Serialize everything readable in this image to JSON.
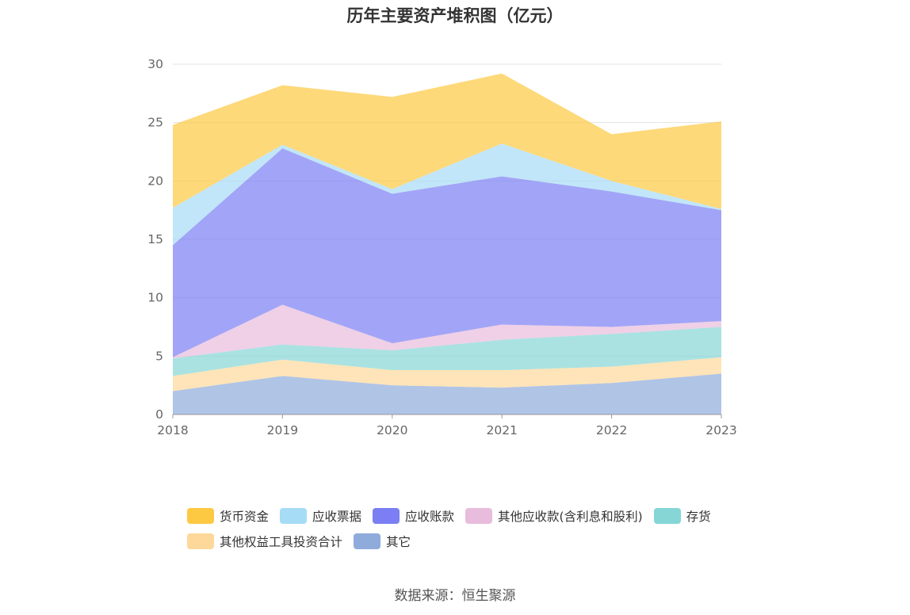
{
  "chart_data": {
    "type": "area",
    "stacked": true,
    "title": "历年主要资产堆积图（亿元）",
    "categories": [
      "2018",
      "2019",
      "2020",
      "2021",
      "2022",
      "2023"
    ],
    "ylim": [
      0,
      30
    ],
    "y_ticks": [
      "0",
      "5",
      "10",
      "15",
      "20",
      "25",
      "30"
    ],
    "grid": true,
    "legend_position": "bottom",
    "series": [
      {
        "name": "其它",
        "color": "#8eabdb",
        "values": [
          2.0,
          3.3,
          2.5,
          2.3,
          2.7,
          3.5
        ]
      },
      {
        "name": "其他权益工具投资合计",
        "color": "#fdd89a",
        "values": [
          1.3,
          1.4,
          1.3,
          1.5,
          1.4,
          1.4
        ]
      },
      {
        "name": "存货",
        "color": "#86d6d6",
        "values": [
          1.5,
          1.3,
          1.7,
          2.6,
          2.8,
          2.6
        ]
      },
      {
        "name": "其他应收款(含利息和股利)",
        "color": "#e8bcdc",
        "values": [
          0.1,
          3.4,
          0.6,
          1.3,
          0.6,
          0.5
        ]
      },
      {
        "name": "应收账款",
        "color": "#7b7ff3",
        "values": [
          9.6,
          13.4,
          12.8,
          12.7,
          11.6,
          9.5
        ]
      },
      {
        "name": "应收票据",
        "color": "#a6dcf6",
        "values": [
          3.2,
          0.3,
          0.4,
          2.8,
          0.9,
          0.1
        ]
      },
      {
        "name": "货币资金",
        "color": "#fec942",
        "values": [
          7.1,
          5.1,
          7.9,
          6.0,
          4.0,
          7.5
        ]
      }
    ],
    "legend_order": [
      "货币资金",
      "应收票据",
      "应收账款",
      "其他应收款(含利息和股利)",
      "存货",
      "其他权益工具投资合计",
      "其它"
    ]
  },
  "source_text": "数据来源：恒生聚源"
}
